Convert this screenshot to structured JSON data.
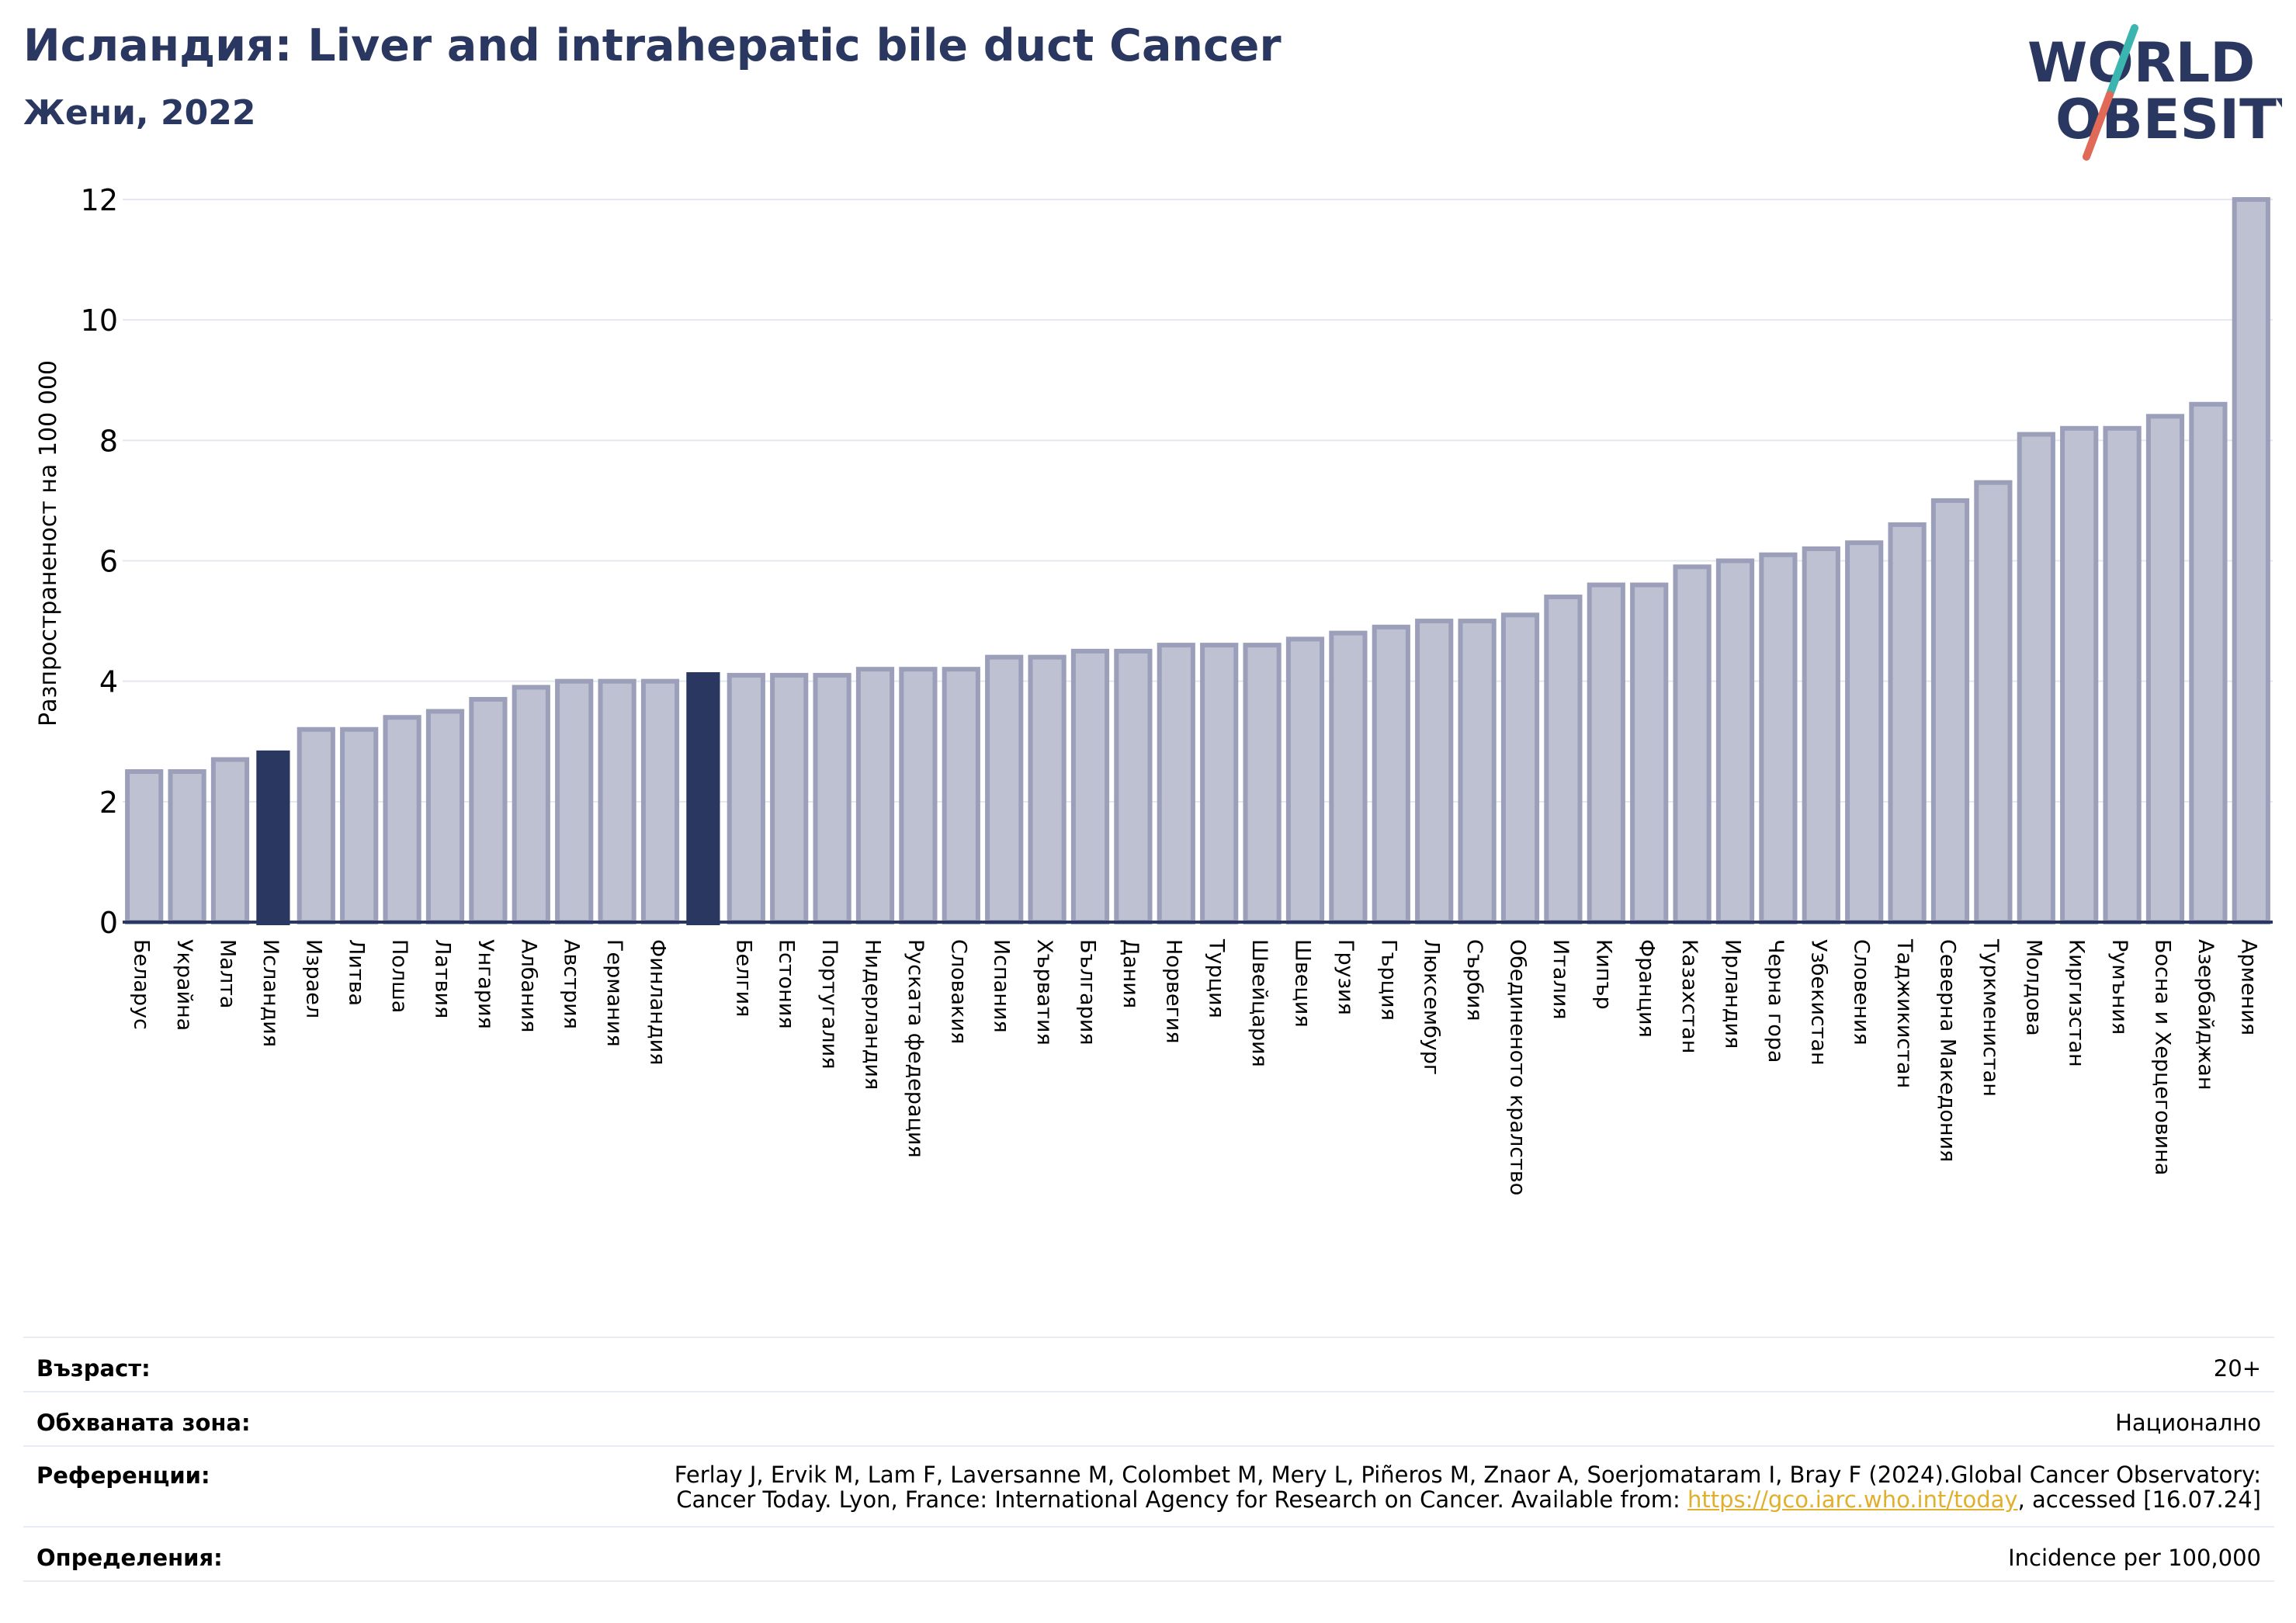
{
  "header": {
    "title": "Исландия: Liver and intrahepatic bile duct Cancer",
    "subtitle": "Жени, 2022"
  },
  "logo": {
    "line1": "WORLD",
    "line2": "OBESITY"
  },
  "colors": {
    "bar": "#bdc1d1",
    "bar_border": "#9b9fb9",
    "highlight": "#2a3760",
    "grid": "#e4e8ee",
    "axis": "#2a3760",
    "title": "#2a3760",
    "link": "#e0b02c",
    "logo_slash_top": "#3bb5b0",
    "logo_slash_bottom": "#e06a57"
  },
  "chart_data": {
    "type": "bar",
    "ylabel": "Разпространеност  на 100 000",
    "ylim": [
      0,
      12
    ],
    "yticks": [
      0,
      2,
      4,
      6,
      8,
      10,
      12
    ],
    "grid": true,
    "categories": [
      "Беларус",
      "Украйна",
      "Малта",
      "Исландия",
      "Израел",
      "Литва",
      "Полша",
      "Латвия",
      "Унгария",
      "Албания",
      "Австрия",
      "Германия",
      "Финландия",
      "",
      "Белгия",
      "Естония",
      "Португалия",
      "Нидерландия",
      "Руската федерация",
      "Словакия",
      "Испания",
      "Хърватия",
      "България",
      "Дания",
      "Норвегия",
      "Турция",
      "Швейцария",
      "Швеция",
      "Грузия",
      "Гърция",
      "Люксембург",
      "Сърбия",
      "Обединеното кралство",
      "Италия",
      "Кипър",
      "Франция",
      "Казахстан",
      "Ирландия",
      "Черна гора",
      "Узбекистан",
      "Словения",
      "Таджикистан",
      "Северна Македония",
      "Туркменистан",
      "Молдова",
      "Киргизстан",
      "Румъния",
      "Босна и Херцеговина",
      "Азербайджан",
      "Армения"
    ],
    "values": [
      2.5,
      2.5,
      2.7,
      2.85,
      3.2,
      3.2,
      3.4,
      3.5,
      3.7,
      3.9,
      4.0,
      4.0,
      4.0,
      4.15,
      4.1,
      4.1,
      4.1,
      4.2,
      4.2,
      4.2,
      4.4,
      4.4,
      4.5,
      4.5,
      4.6,
      4.6,
      4.6,
      4.7,
      4.8,
      4.9,
      5.0,
      5.0,
      5.1,
      5.4,
      5.6,
      5.6,
      5.9,
      6.0,
      6.1,
      6.2,
      6.3,
      6.6,
      7.0,
      7.3,
      8.1,
      8.2,
      8.2,
      8.4,
      8.6,
      12.0
    ],
    "highlighted": [
      "Исландия",
      ""
    ]
  },
  "info": {
    "age_label": "Възраст:",
    "age_value": "20+",
    "area_label": "Обхваната зона:",
    "area_value": "Национално",
    "refs_label": "Референции:",
    "refs_line1": "Ferlay J, Ervik M, Lam F, Laversanne M, Colombet M, Mery L, Piñeros M, Znaor A, Soerjomataram I, Bray F (2024).Global Cancer Observatory:",
    "refs_line2_pre": "Cancer Today. Lyon, France: International Agency for Research on Cancer. Available from: ",
    "refs_link": "https://gco.iarc.who.int/today",
    "refs_line2_post": ", accessed [16.07.24]",
    "defs_label": "Определения:",
    "defs_value": "Incidence per 100,000"
  }
}
